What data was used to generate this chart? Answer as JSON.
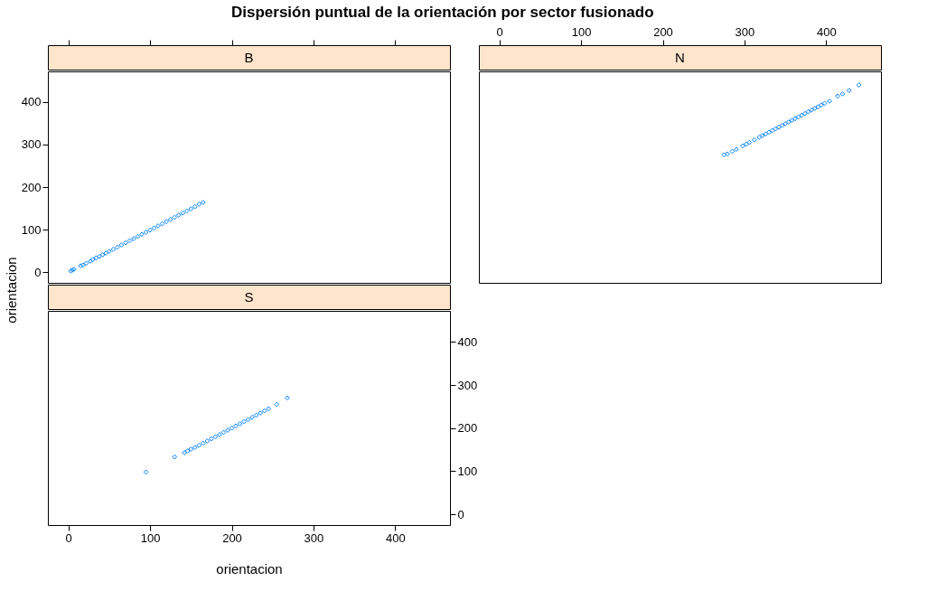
{
  "chart_data": [
    {
      "type": "scatter",
      "title": "Dispersión puntual de la orientación por sector fusionado",
      "subtitle": "B",
      "ylabel": "orientacion",
      "marker": "diamond",
      "tick_labels": "y",
      "xlim": [
        -25,
        467
      ],
      "ylim": [
        -25,
        472
      ],
      "xticks": [
        0,
        100,
        200,
        300,
        400
      ],
      "yticks": [
        0,
        100,
        200,
        300,
        400
      ],
      "series": [
        {
          "color": "#0080ff",
          "x": [
            3,
            5,
            7,
            15,
            18,
            22,
            27,
            30,
            34,
            38,
            42,
            46,
            50,
            55,
            60,
            65,
            70,
            75,
            80,
            85,
            90,
            95,
            100,
            105,
            110,
            115,
            120,
            125,
            130,
            135,
            140,
            145,
            150,
            155,
            160,
            165
          ],
          "values": [
            3,
            5,
            7,
            15,
            17,
            21,
            26,
            30,
            34,
            37,
            41,
            45,
            49,
            54,
            59,
            64,
            69,
            74,
            79,
            84,
            89,
            94,
            99,
            104,
            109,
            114,
            119,
            124,
            129,
            134,
            139,
            144,
            149,
            154,
            160,
            164
          ]
        }
      ]
    },
    {
      "type": "scatter",
      "subtitle": "N",
      "marker": "diamond",
      "tick_labels": "x",
      "xlim": [
        -25,
        467
      ],
      "ylim": [
        -25,
        472
      ],
      "xticks": [
        0,
        100,
        200,
        300,
        400
      ],
      "yticks": [
        0,
        100,
        200,
        300,
        400
      ],
      "series": [
        {
          "color": "#0080ff",
          "x": [
            275,
            279,
            285,
            290,
            298,
            302,
            306,
            312,
            318,
            322,
            326,
            330,
            334,
            338,
            342,
            346,
            350,
            354,
            358,
            362,
            366,
            370,
            374,
            378,
            382,
            386,
            390,
            394,
            398,
            404,
            414,
            420,
            428,
            440
          ],
          "values": [
            276,
            278,
            284,
            289,
            297,
            301,
            305,
            311,
            317,
            321,
            325,
            329,
            333,
            337,
            341,
            345,
            349,
            353,
            357,
            361,
            365,
            369,
            373,
            377,
            381,
            385,
            389,
            393,
            397,
            402,
            414,
            419,
            427,
            440
          ]
        }
      ]
    },
    {
      "type": "scatter",
      "subtitle": "S",
      "xlabel": "orientacion",
      "marker": "diamond",
      "xlim": [
        -25,
        467
      ],
      "ylim": [
        -25,
        472
      ],
      "xticks": [
        0,
        100,
        200,
        300,
        400
      ],
      "yticks": [
        0,
        100,
        200,
        300,
        400
      ],
      "series": [
        {
          "color": "#0080ff",
          "x": [
            95,
            130,
            142,
            146,
            150,
            155,
            160,
            165,
            170,
            175,
            180,
            185,
            190,
            195,
            200,
            205,
            210,
            215,
            220,
            225,
            230,
            235,
            240,
            245,
            255,
            268
          ],
          "values": [
            98,
            133,
            143,
            147,
            151,
            155,
            160,
            165,
            170,
            175,
            180,
            185,
            190,
            195,
            200,
            205,
            210,
            215,
            220,
            225,
            230,
            235,
            240,
            245,
            255,
            270
          ]
        }
      ]
    }
  ]
}
